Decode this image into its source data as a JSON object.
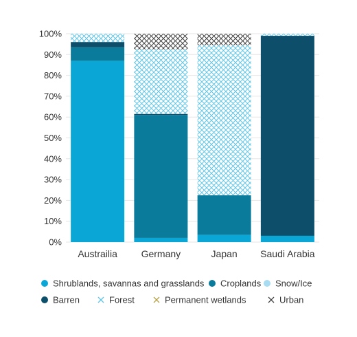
{
  "chart_data": {
    "type": "bar",
    "stacked": true,
    "categories": [
      "Austrailia",
      "Germany",
      "Japan",
      "Saudi Arabia"
    ],
    "ylim": [
      0,
      100
    ],
    "yticks": [
      "0%",
      "10%",
      "20%",
      "30%",
      "40%",
      "50%",
      "60%",
      "70%",
      "80%",
      "90%",
      "100%"
    ],
    "grid": true,
    "legend_position": "bottom",
    "series": [
      {
        "name": "Shrublands, savannas and grasslands",
        "values": [
          87,
          2,
          3.5,
          3
        ],
        "color": "#0aa7d6",
        "pattern": "solid"
      },
      {
        "name": "Croplands",
        "values": [
          6.5,
          59,
          19,
          0
        ],
        "color": "#0b7b9c",
        "pattern": "solid"
      },
      {
        "name": "Snow/Ice",
        "values": [
          0,
          0,
          0,
          0
        ],
        "color": "#a8dcf2",
        "pattern": "solid"
      },
      {
        "name": "Barren",
        "values": [
          2.5,
          0.5,
          0,
          96
        ],
        "color": "#0d4f6b",
        "pattern": "solid"
      },
      {
        "name": "Forest",
        "values": [
          4,
          31,
          72,
          1
        ],
        "color": "#5fc6e6",
        "pattern": "crosshatch"
      },
      {
        "name": "Permanent wetlands",
        "values": [
          0,
          0,
          0,
          0
        ],
        "color": "#b7a24a",
        "pattern": "crosshatch"
      },
      {
        "name": "Urban",
        "values": [
          0,
          7.5,
          5.5,
          0
        ],
        "color": "#444444",
        "pattern": "crosshatch"
      }
    ]
  }
}
